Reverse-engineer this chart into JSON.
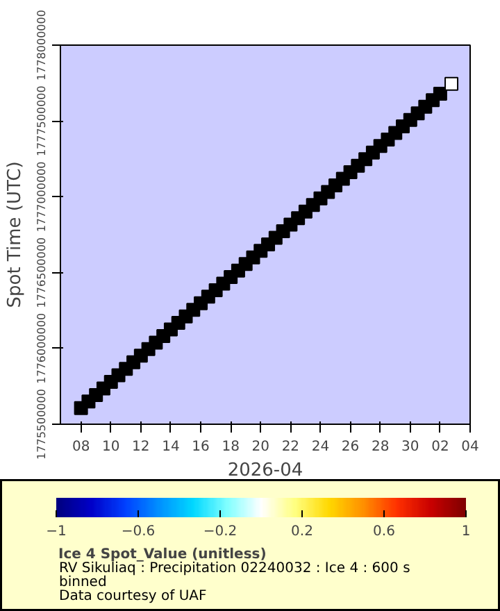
{
  "chart_data": {
    "type": "scatter",
    "xlabel": "2026-04",
    "ylabel": "Spot Time (UTC)",
    "x": [
      "2026-04-08T00:00",
      "2026-04-08T12:00",
      "2026-04-09T00:00",
      "2026-04-09T12:00",
      "2026-04-10T00:00",
      "2026-04-10T12:00",
      "2026-04-11T00:00",
      "2026-04-11T12:00",
      "2026-04-12T00:00",
      "2026-04-12T12:00",
      "2026-04-13T00:00",
      "2026-04-13T12:00",
      "2026-04-14T00:00",
      "2026-04-14T12:00",
      "2026-04-15T00:00",
      "2026-04-15T12:00",
      "2026-04-16T00:00",
      "2026-04-16T12:00",
      "2026-04-17T00:00",
      "2026-04-17T12:00",
      "2026-04-18T00:00",
      "2026-04-18T12:00",
      "2026-04-19T00:00",
      "2026-04-19T12:00",
      "2026-04-20T00:00",
      "2026-04-20T12:00",
      "2026-04-21T00:00",
      "2026-04-21T12:00",
      "2026-04-22T00:00",
      "2026-04-22T12:00",
      "2026-04-23T00:00",
      "2026-04-23T12:00",
      "2026-04-24T00:00",
      "2026-04-24T12:00",
      "2026-04-25T00:00",
      "2026-04-25T12:00",
      "2026-04-26T00:00",
      "2026-04-26T12:00",
      "2026-04-27T00:00",
      "2026-04-27T12:00",
      "2026-04-28T00:00",
      "2026-04-28T12:00",
      "2026-04-29T00:00",
      "2026-04-29T12:00",
      "2026-04-30T00:00",
      "2026-04-30T12:00",
      "2026-05-01T00:00",
      "2026-05-01T12:00",
      "2026-05-02T00:00",
      "2026-05-02T18:00"
    ],
    "series": [
      {
        "name": "Ice 4 Spot_Value (unitless)",
        "color": "#000000",
        "values": [
          1775606400,
          1775649600,
          1775692800,
          1775736000,
          1775779200,
          1775822400,
          1775865600,
          1775908800,
          1775952000,
          1775995200,
          1776038400,
          1776081600,
          1776124800,
          1776168000,
          1776211200,
          1776254400,
          1776297600,
          1776340800,
          1776384000,
          1776427200,
          1776470400,
          1776513600,
          1776556800,
          1776600000,
          1776643200,
          1776686400,
          1776729600,
          1776772800,
          1776816000,
          1776859200,
          1776902400,
          1776945600,
          1776988800,
          1777032000,
          1777075200,
          1777118400,
          1777161600,
          1777204800,
          1777248000,
          1777291200,
          1777334400,
          1777377600,
          1777420800,
          1777464000,
          1777507200,
          1777550400,
          1777593600,
          1777636800,
          1777680000,
          1777744800
        ],
        "cvalues": [
          null,
          null,
          null,
          null,
          null,
          null,
          null,
          null,
          null,
          null,
          null,
          null,
          null,
          null,
          null,
          null,
          null,
          null,
          null,
          null,
          null,
          null,
          null,
          null,
          null,
          null,
          null,
          null,
          null,
          null,
          null,
          null,
          null,
          null,
          null,
          null,
          null,
          null,
          null,
          null,
          null,
          null,
          null,
          null,
          null,
          null,
          null,
          null,
          null,
          0
        ]
      }
    ],
    "xlim": [
      "2026-04-06T15:00",
      "2026-05-04T00:00"
    ],
    "xticks": [
      {
        "value": "2026-04-08",
        "label": "08"
      },
      {
        "value": "2026-04-10",
        "label": "10"
      },
      {
        "value": "2026-04-12",
        "label": "12"
      },
      {
        "value": "2026-04-14",
        "label": "14"
      },
      {
        "value": "2026-04-16",
        "label": "16"
      },
      {
        "value": "2026-04-18",
        "label": "18"
      },
      {
        "value": "2026-04-20",
        "label": "20"
      },
      {
        "value": "2026-04-22",
        "label": "22"
      },
      {
        "value": "2026-04-24",
        "label": "24"
      },
      {
        "value": "2026-04-26",
        "label": "26"
      },
      {
        "value": "2026-04-28",
        "label": "28"
      },
      {
        "value": "2026-04-30",
        "label": "30"
      },
      {
        "value": "2026-05-02",
        "label": "02"
      },
      {
        "value": "2026-05-04",
        "label": "04"
      }
    ],
    "ylim": [
      1775500000,
      1778000000
    ],
    "yticks": [
      1775500000,
      1776000000,
      1776500000,
      1777000000,
      1777500000,
      1778000000
    ],
    "clim": [
      -1,
      1
    ],
    "cticks": [
      -1,
      -0.6,
      -0.2,
      0.2,
      0.6,
      1
    ],
    "marker": "square",
    "grid": false,
    "legend": "bottom",
    "annotations": [
      "RV Sikuliaq : Precipitation 02240032 : Ice 4 : 600 s binned",
      "Data courtesy of UAF"
    ]
  }
}
